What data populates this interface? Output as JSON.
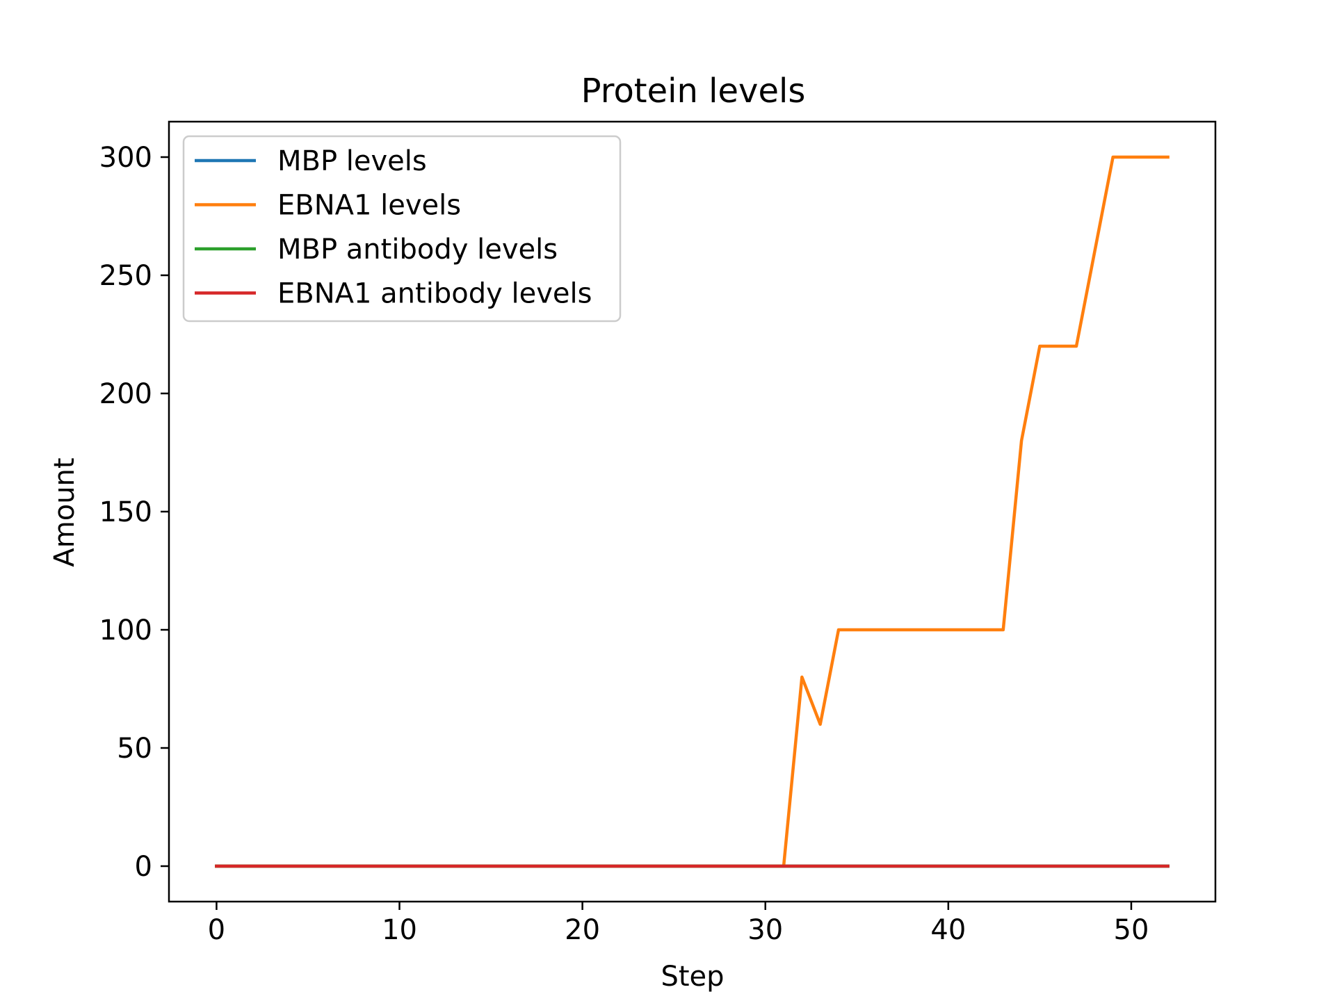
{
  "chart_data": {
    "type": "line",
    "title": "Protein levels",
    "xlabel": "Step",
    "ylabel": "Amount",
    "xlim": [
      -2.6,
      54.6
    ],
    "ylim": [
      -15,
      315
    ],
    "xticks": [
      0,
      10,
      20,
      30,
      40,
      50
    ],
    "yticks": [
      0,
      50,
      100,
      150,
      200,
      250,
      300
    ],
    "grid": false,
    "legend_position": "top-left",
    "series": [
      {
        "name": "MBP levels",
        "color": "#1f77b4",
        "x": [
          0,
          52
        ],
        "y": [
          0,
          0
        ]
      },
      {
        "name": "EBNA1 levels",
        "color": "#ff7f0e",
        "x": [
          0,
          31,
          32,
          33,
          34,
          43,
          44,
          45,
          47,
          49,
          52
        ],
        "y": [
          0,
          0,
          80,
          60,
          100,
          100,
          180,
          220,
          220,
          300,
          300
        ]
      },
      {
        "name": "MBP antibody levels",
        "color": "#2ca02c",
        "x": [
          0,
          52
        ],
        "y": [
          0,
          0
        ]
      },
      {
        "name": "EBNA1 antibody levels",
        "color": "#d62728",
        "x": [
          0,
          52
        ],
        "y": [
          0,
          0
        ]
      }
    ]
  }
}
